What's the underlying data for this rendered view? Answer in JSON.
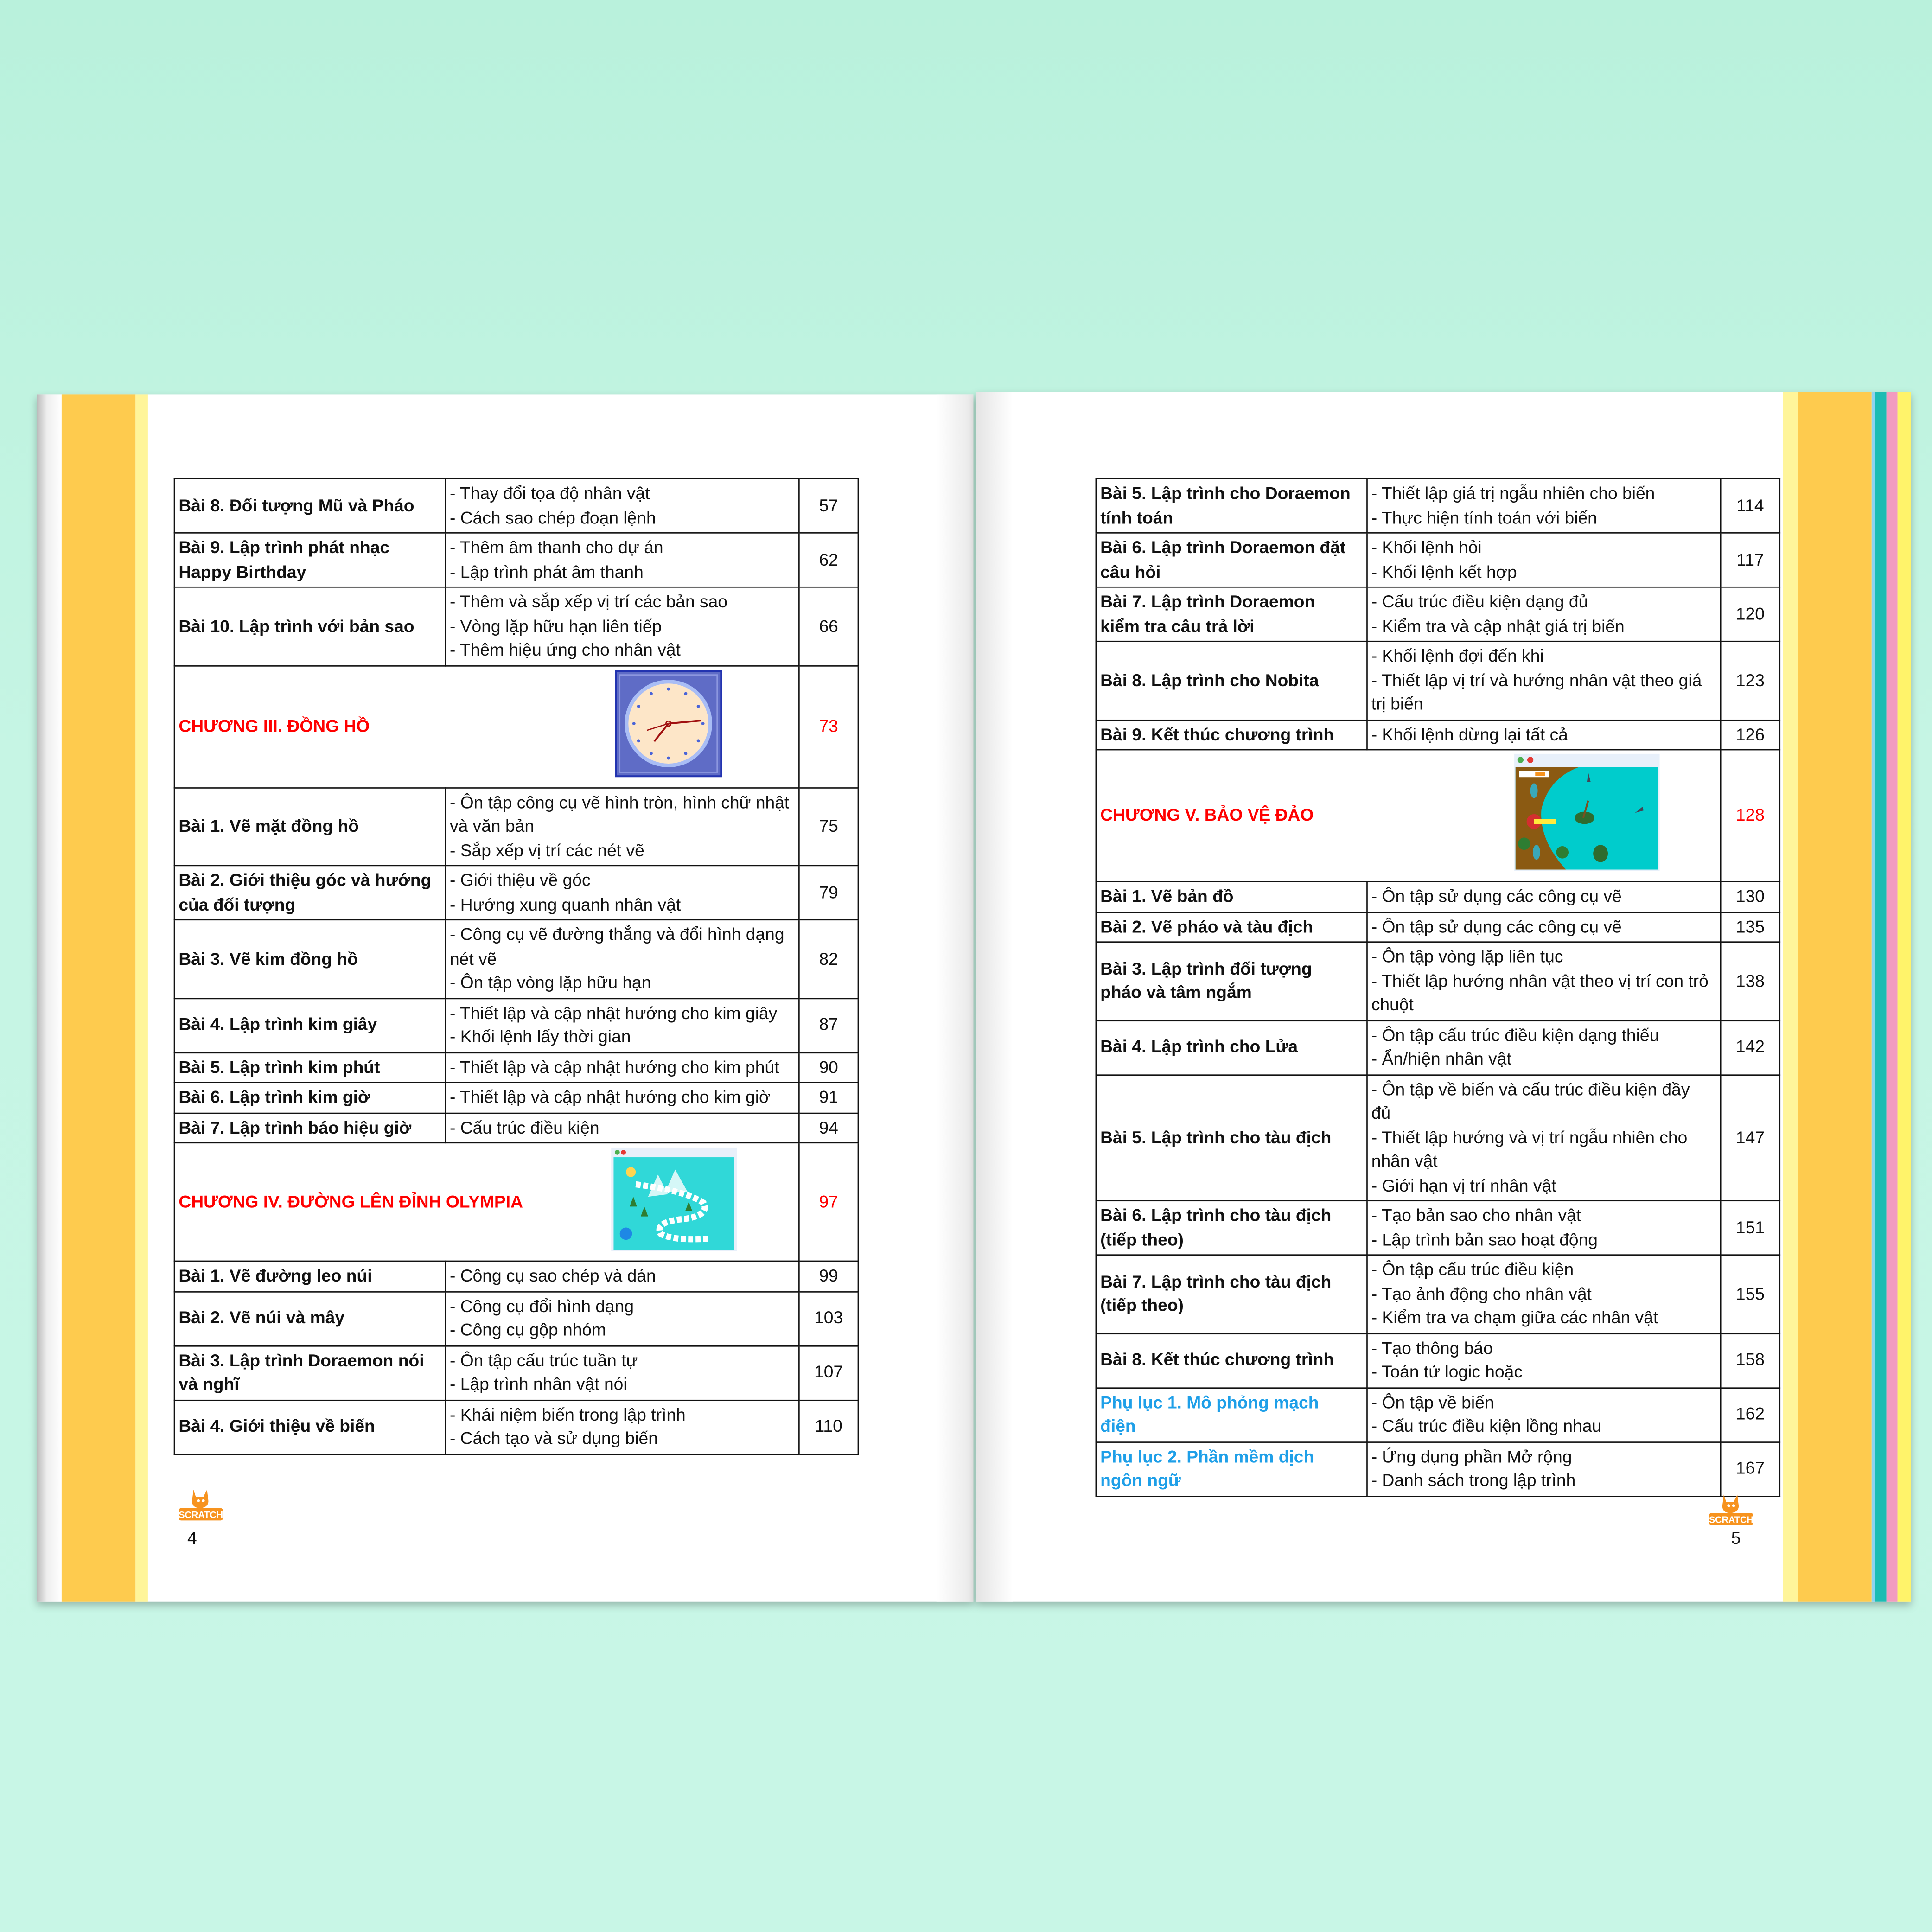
{
  "colors": {
    "background": "#c3f4e1",
    "chapter": "#ff0000",
    "appendix": "#1e9fe8",
    "band_yellow": "#fecb4e",
    "band_light": "#fff59a",
    "tab_teal": "#1cbcb3",
    "tab_pink": "#f29bc0",
    "tab_blue": "#8ed3f0",
    "tab_yellow": "#fff36a"
  },
  "logo_text": "SCRATCH",
  "left_page": {
    "page_number": "4",
    "rows": [
      {
        "title": [
          "Bài 8. Đối tượng Mũ và Pháo"
        ],
        "lines": [
          "- Thay đổi tọa độ nhân vật",
          "- Cách sao chép đoạn lệnh"
        ],
        "page": "57"
      },
      {
        "title": [
          "Bài 9. Lập trình phát nhạc",
          "Happy Birthday"
        ],
        "lines": [
          "- Thêm âm thanh cho dự án",
          "- Lập trình phát âm thanh"
        ],
        "page": "62"
      },
      {
        "title": [
          "Bài 10. Lập trình với bản sao"
        ],
        "lines": [
          "- Thêm và sắp xếp vị trí các bản sao",
          "- Vòng lặp hữu hạn liên tiếp",
          "- Thêm hiệu ứng cho nhân vật"
        ],
        "page": "66"
      },
      {
        "type": "chapter",
        "title": [
          "CHƯƠNG III. ĐỒNG HỒ"
        ],
        "image": "clock-image",
        "page": "73"
      },
      {
        "title": [
          "Bài 1. Vẽ mặt đồng hồ"
        ],
        "lines": [
          "- Ôn tập công cụ vẽ hình tròn, hình chữ nhật",
          "và văn bản",
          "- Sắp xếp vị trí các nét vẽ"
        ],
        "page": "75"
      },
      {
        "title": [
          "Bài 2. Giới thiệu góc và hướng",
          "của đối tượng"
        ],
        "lines": [
          "- Giới thiệu về góc",
          "- Hướng xung quanh nhân vật"
        ],
        "page": "79"
      },
      {
        "title": [
          "Bài 3. Vẽ kim đồng hồ"
        ],
        "lines": [
          "- Công cụ vẽ đường thẳng và đổi hình dạng",
          "nét vẽ",
          "- Ôn tập vòng lặp hữu hạn"
        ],
        "page": "82"
      },
      {
        "title": [
          "Bài 4. Lập trình kim giây"
        ],
        "lines": [
          "- Thiết lập và cập nhật hướng cho kim giây",
          "- Khối lệnh lấy thời gian"
        ],
        "page": "87"
      },
      {
        "title": [
          "Bài 5. Lập trình kim phút"
        ],
        "lines": [
          "- Thiết lập và cập nhật hướng cho kim phút"
        ],
        "page": "90"
      },
      {
        "title": [
          "Bài 6. Lập trình kim giờ"
        ],
        "lines": [
          "- Thiết lập và cập nhật hướng cho kim giờ"
        ],
        "page": "91"
      },
      {
        "title": [
          "Bài 7. Lập trình báo hiệu giờ"
        ],
        "lines": [
          "- Cấu trúc điều kiện"
        ],
        "page": "94"
      },
      {
        "type": "chapter",
        "title": [
          "CHƯƠNG IV. ĐƯỜNG LÊN ĐỈNH OLYMPIA"
        ],
        "image": "olympia-image",
        "page": "97"
      },
      {
        "title": [
          "Bài 1. Vẽ đường leo núi"
        ],
        "lines": [
          "- Công cụ sao chép và dán"
        ],
        "page": "99"
      },
      {
        "title": [
          "Bài 2. Vẽ núi và mây"
        ],
        "lines": [
          "- Công cụ đổi hình dạng",
          "- Công cụ gộp nhóm"
        ],
        "page": "103"
      },
      {
        "title": [
          "Bài 3. Lập trình Doraemon nói",
          "và nghĩ"
        ],
        "lines": [
          "- Ôn tập cấu trúc tuần tự",
          "- Lập trình nhân vật nói"
        ],
        "page": "107"
      },
      {
        "title": [
          "Bài 4. Giới thiệu về biến"
        ],
        "lines": [
          "- Khái niệm biến trong lập trình",
          "- Cách tạo và sử dụng biến"
        ],
        "page": "110"
      }
    ]
  },
  "right_page": {
    "page_number": "5",
    "rows": [
      {
        "title": [
          "Bài 5. Lập trình cho Doraemon",
          "tính toán"
        ],
        "lines": [
          "- Thiết lập giá trị ngẫu nhiên cho biến",
          "- Thực hiện tính toán với biến"
        ],
        "page": "114"
      },
      {
        "title": [
          "Bài 6. Lập trình Doraemon đặt",
          "câu hỏi"
        ],
        "lines": [
          "- Khối lệnh hỏi",
          "- Khối lệnh kết hợp"
        ],
        "page": "117"
      },
      {
        "title": [
          "Bài 7. Lập trình Doraemon",
          "kiểm tra câu trả lời"
        ],
        "lines": [
          "- Cấu trúc điều kiện dạng đủ",
          "- Kiểm tra và cập nhật giá trị biến"
        ],
        "page": "120"
      },
      {
        "title": [
          "Bài 8. Lập trình cho Nobita"
        ],
        "lines": [
          "- Khối lệnh đợi đến khi",
          "- Thiết lập vị trí và hướng nhân vật theo giá",
          "trị biến"
        ],
        "page": "123"
      },
      {
        "title": [
          "Bài 9. Kết thúc chương trình"
        ],
        "lines": [
          "- Khối lệnh dừng lại tất cả"
        ],
        "page": "126"
      },
      {
        "type": "chapter",
        "title": [
          "CHƯƠNG V. BẢO VỆ ĐẢO"
        ],
        "image": "island-image",
        "page": "128"
      },
      {
        "title": [
          "Bài 1. Vẽ bản đồ"
        ],
        "lines": [
          "- Ôn tập sử dụng các công cụ vẽ"
        ],
        "page": "130"
      },
      {
        "title": [
          "Bài 2. Vẽ pháo và tàu địch"
        ],
        "lines": [
          "- Ôn tập sử dụng các công cụ vẽ"
        ],
        "page": "135"
      },
      {
        "title": [
          "Bài 3. Lập trình đối tượng",
          "pháo và tâm ngắm"
        ],
        "lines": [
          "- Ôn tập vòng lặp liên tục",
          "- Thiết lập hướng nhân vật theo vị trí con trỏ",
          "chuột"
        ],
        "page": "138"
      },
      {
        "title": [
          "Bài 4. Lập trình cho Lửa"
        ],
        "lines": [
          "- Ôn tập cấu trúc điều kiện dạng thiếu",
          "- Ẩn/hiện nhân vật"
        ],
        "page": "142"
      },
      {
        "title": [
          "Bài 5. Lập trình cho tàu địch"
        ],
        "lines": [
          "- Ôn tập về biến và cấu trúc điều kiện đầy",
          "đủ",
          "- Thiết lập hướng và vị trí ngẫu nhiên cho",
          "nhân vật",
          "- Giới hạn vị trí nhân vật"
        ],
        "page": "147"
      },
      {
        "title": [
          "Bài 6. Lập trình cho tàu địch",
          "(tiếp theo)"
        ],
        "lines": [
          "- Tạo bản sao cho nhân vật",
          "- Lập trình bản sao hoạt động"
        ],
        "page": "151"
      },
      {
        "title": [
          "Bài 7. Lập trình cho tàu địch",
          "(tiếp theo)"
        ],
        "lines": [
          "- Ôn tập cấu trúc điều kiện",
          "- Tạo ảnh động cho nhân vật",
          "- Kiểm tra va chạm giữa các nhân vật"
        ],
        "page": "155"
      },
      {
        "title": [
          "Bài 8. Kết thúc chương trình"
        ],
        "lines": [
          "- Tạo thông báo",
          "- Toán tử logic hoặc"
        ],
        "page": "158"
      },
      {
        "type": "appendix",
        "title": [
          "Phụ lục 1. Mô phỏng mạch",
          "điện"
        ],
        "lines": [
          "- Ôn tập về biến",
          "- Cấu trúc điều kiện lồng nhau"
        ],
        "page": "162"
      },
      {
        "type": "appendix",
        "title": [
          "Phụ lục 2. Phần mềm dịch",
          "ngôn ngữ"
        ],
        "lines": [
          "- Ứng dụng phần Mở rộng",
          "- Danh sách trong lập trình"
        ],
        "page": "167"
      }
    ]
  }
}
